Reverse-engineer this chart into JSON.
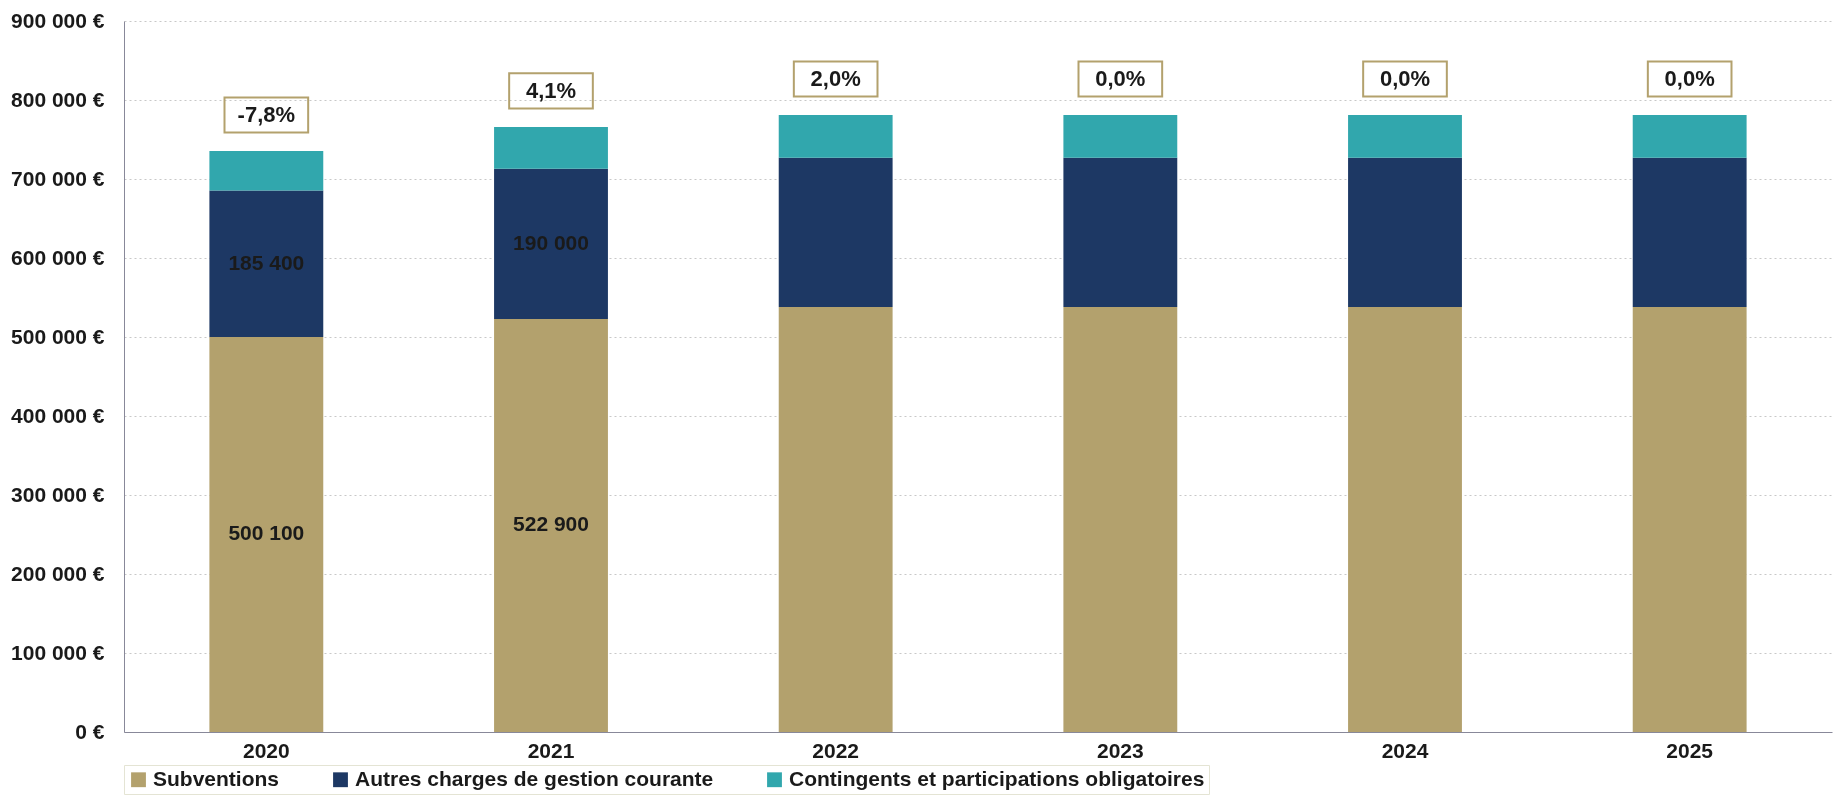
{
  "chart_data": {
    "type": "bar",
    "stacked": true,
    "categories": [
      "2020",
      "2021",
      "2022",
      "2023",
      "2024",
      "2025"
    ],
    "series": [
      {
        "name": "Subventions",
        "color": "#b3a16d",
        "values": [
          500100,
          522900,
          538000,
          538000,
          538000,
          538000
        ],
        "value_labels": [
          "500 100",
          "522 900",
          null,
          null,
          null,
          null
        ]
      },
      {
        "name": "Autres charges de gestion courante",
        "color": "#1d3864",
        "values": [
          185400,
          190000,
          189000,
          189000,
          189000,
          189000
        ],
        "value_labels": [
          "185 400",
          "190 000",
          null,
          null,
          null,
          null
        ]
      },
      {
        "name": "Contingents et participations obligatoires",
        "color": "#31a7ad",
        "values": [
          50000,
          53000,
          54000,
          54000,
          54000,
          54000
        ]
      }
    ],
    "ylim": [
      0,
      900000
    ],
    "yticks": [
      {
        "value": 0,
        "label": "0 €"
      },
      {
        "value": 100000,
        "label": "100 000 €"
      },
      {
        "value": 200000,
        "label": "200 000 €"
      },
      {
        "value": 300000,
        "label": "300 000 €"
      },
      {
        "value": 400000,
        "label": "400 000 €"
      },
      {
        "value": 500000,
        "label": "500 000 €"
      },
      {
        "value": 600000,
        "label": "600 000 €"
      },
      {
        "value": 700000,
        "label": "700 000 €"
      },
      {
        "value": 800000,
        "label": "800 000 €"
      },
      {
        "value": 900000,
        "label": "900 000 €"
      }
    ],
    "grid": "y",
    "legend": "bottom",
    "annotations": [
      {
        "text": "-7,8%",
        "x": "2020",
        "y": 735500
      },
      {
        "text": "4,1%",
        "x": "2021",
        "y": 765900
      },
      {
        "text": "2,0%",
        "x": "2022",
        "y": 781000
      },
      {
        "text": "0,0%",
        "x": "2023",
        "y": 781000
      },
      {
        "text": "0,0%",
        "x": "2024",
        "y": 781000
      },
      {
        "text": "0,0%",
        "x": "2025",
        "y": 781000
      }
    ]
  }
}
